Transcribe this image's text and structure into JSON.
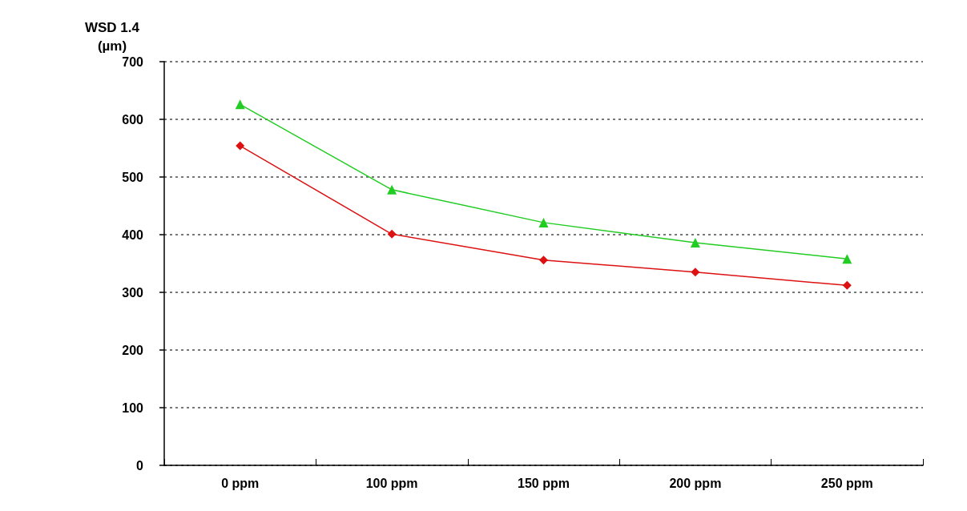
{
  "chart_data": {
    "type": "line",
    "ylabel": "WSD 1.4\n(µm)",
    "categories": [
      "0 ppm",
      "100 ppm",
      "150 ppm",
      "200 ppm",
      "250 ppm"
    ],
    "series": [
      {
        "color": "#22cc22",
        "marker": "triangle",
        "values": [
          626,
          478,
          421,
          386,
          358
        ]
      },
      {
        "color": "#dd1111",
        "marker": "diamond",
        "values": [
          554,
          401,
          356,
          335,
          312
        ]
      }
    ],
    "ylim": [
      0,
      700
    ],
    "yticks": [
      0,
      100,
      200,
      300,
      400,
      500,
      600,
      700
    ],
    "grid": "y",
    "line_style": "solid"
  }
}
